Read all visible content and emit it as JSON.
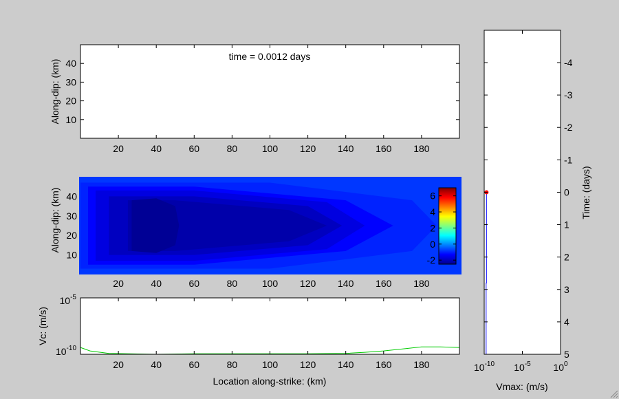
{
  "chart_data": [
    {
      "type": "blank",
      "title": "time = 0.0012 days",
      "ylabel": "Along-dip: (km)",
      "xlim": [
        0,
        200
      ],
      "ylim": [
        0,
        50
      ],
      "xticks": [
        20,
        40,
        60,
        80,
        100,
        120,
        140,
        160,
        180
      ],
      "yticks": [
        10,
        20,
        30,
        40
      ]
    },
    {
      "type": "heatmap",
      "ylabel": "Along-dip: (km)",
      "xlim": [
        0,
        200
      ],
      "ylim": [
        0,
        50
      ],
      "xticks": [
        20,
        40,
        60,
        80,
        100,
        120,
        140,
        160,
        180
      ],
      "yticks": [
        10,
        20,
        30,
        40
      ],
      "colorbar": {
        "range": [
          -2.5,
          7
        ],
        "ticks": [
          -2,
          0,
          2,
          4,
          6
        ],
        "colormap": "jet",
        "placement": "right-inside"
      },
      "background_value": -0.8,
      "contours": [
        {
          "value": -1.0,
          "x": [
            0,
            100,
            175,
            188,
            175,
            100,
            0
          ],
          "y": [
            3,
            3,
            12,
            25,
            38,
            47,
            47
          ]
        },
        {
          "value": -1.3,
          "x": [
            4,
            60,
            140,
            165,
            140,
            60,
            4
          ],
          "y": [
            5,
            5,
            12,
            25,
            38,
            45,
            45
          ]
        },
        {
          "value": -1.6,
          "x": [
            8,
            60,
            130,
            150,
            130,
            60,
            8
          ],
          "y": [
            7,
            7,
            13,
            25,
            37,
            43,
            43
          ]
        },
        {
          "value": -1.9,
          "x": [
            15,
            60,
            120,
            138,
            120,
            60,
            15
          ],
          "y": [
            10,
            10,
            15,
            25,
            35,
            40,
            40
          ]
        },
        {
          "value": -2.1,
          "x": [
            25,
            50,
            110,
            130,
            110,
            50,
            25
          ],
          "y": [
            12,
            12,
            17,
            25,
            33,
            38,
            38
          ]
        },
        {
          "value": -2.3,
          "x": [
            27,
            40,
            50,
            52,
            50,
            40,
            27
          ],
          "y": [
            12,
            11,
            15,
            25,
            35,
            39,
            38
          ]
        }
      ]
    },
    {
      "type": "line",
      "ylabel": "Vc: (m/s)",
      "xlabel": "Location along-strike: (km)",
      "yscale": "log",
      "xlim": [
        0,
        200
      ],
      "ylim": [
        1e-10,
        1e-05
      ],
      "xticks": [
        20,
        40,
        60,
        80,
        100,
        120,
        140,
        160,
        180
      ],
      "yticks": [
        {
          "base": "10",
          "exp": "-10"
        },
        {
          "base": "10",
          "exp": "-5"
        }
      ],
      "series": [
        {
          "color": "#00cc00",
          "x": [
            0,
            5,
            15,
            40,
            60,
            80,
            100,
            120,
            140,
            150,
            160,
            170,
            180,
            190,
            200
          ],
          "y": [
            4e-10,
            2e-10,
            1.2e-10,
            1e-10,
            1.1e-10,
            1.1e-10,
            1.1e-10,
            1.1e-10,
            1.2e-10,
            1.5e-10,
            2e-10,
            3e-10,
            4.5e-10,
            4.5e-10,
            4e-10
          ]
        }
      ]
    },
    {
      "type": "line",
      "xlabel": "Vmax: (m/s)",
      "ylabel": "Time: (days)",
      "xscale": "log",
      "xlim": [
        1e-10,
        1
      ],
      "ylim": [
        -5,
        5
      ],
      "xticks": [
        {
          "base": "10",
          "exp": "-10"
        },
        {
          "base": "10",
          "exp": "-5"
        },
        {
          "base": "10",
          "exp": "0"
        }
      ],
      "yticks": [
        -4,
        -3,
        -2,
        -1,
        0,
        1,
        2,
        3,
        4,
        5
      ],
      "ytick_labels": [
        "-4",
        "-3",
        "-2",
        "-1",
        "0",
        "1",
        "2",
        "3",
        "4",
        "5"
      ],
      "series": [
        {
          "color": "#0000ff",
          "x": [
            2e-10,
            2e-10,
            1.8e-10,
            1.8e-10
          ],
          "y": [
            0.0012,
            2.8,
            2.8,
            5
          ]
        }
      ],
      "marker": {
        "x": 2e-10,
        "y": 0.0012,
        "color": "#ff0000"
      }
    }
  ]
}
